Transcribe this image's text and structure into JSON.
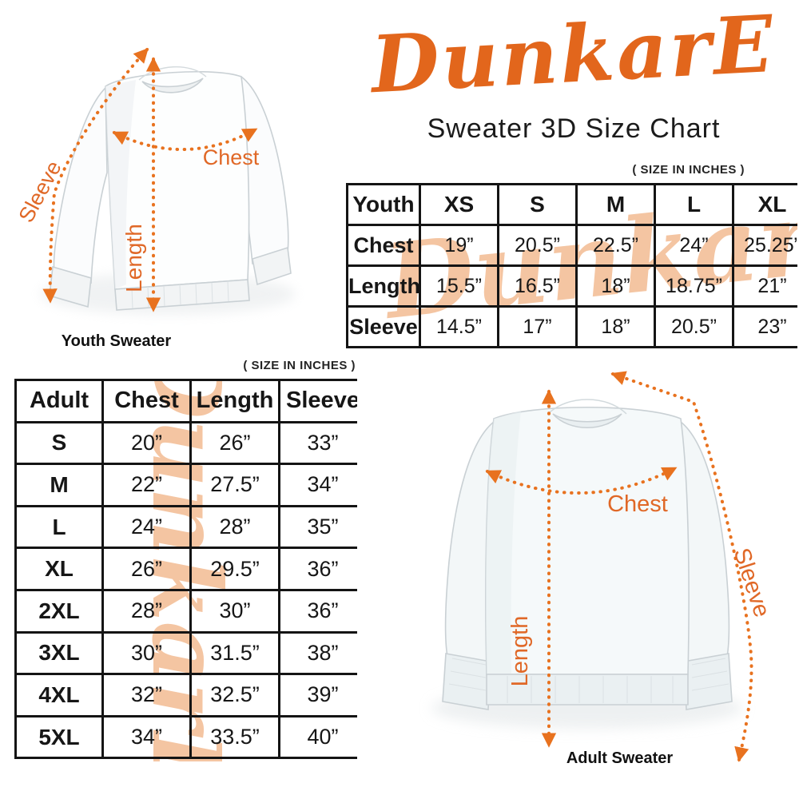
{
  "brand": {
    "logo_text": "DunkarE",
    "subtitle": "Sweater 3D Size Chart"
  },
  "size_note": "( SIZE IN INCHES )",
  "colors": {
    "brand_orange": "#e2661c",
    "arrow_orange": "#e8721f",
    "watermark_peach": "#f4c5a2",
    "table_border_black": "#141414"
  },
  "youth_diagram": {
    "caption": "Youth Sweater",
    "labels": {
      "chest": "Chest",
      "length": "Length",
      "sleeve": "Sleeve"
    }
  },
  "adult_diagram": {
    "caption": "Adult Sweater",
    "labels": {
      "chest": "Chest",
      "length": "Length",
      "sleeve": "Sleeve"
    }
  },
  "youth_table": {
    "header": [
      "Youth",
      "XS",
      "S",
      "M",
      "L",
      "XL"
    ],
    "rows": [
      {
        "label": "Chest",
        "values": [
          "19”",
          "20.5”",
          "22.5”",
          "24”",
          "25.25”"
        ]
      },
      {
        "label": "Length",
        "values": [
          "15.5”",
          "16.5”",
          "18”",
          "18.75”",
          "21”"
        ]
      },
      {
        "label": "Sleeve",
        "values": [
          "14.5”",
          "17”",
          "18”",
          "20.5”",
          "23”"
        ]
      }
    ]
  },
  "adult_table": {
    "header": [
      "Adult",
      "Chest",
      "Length",
      "Sleeve"
    ],
    "rows": [
      {
        "label": "S",
        "values": [
          "20”",
          "26”",
          "33”"
        ]
      },
      {
        "label": "M",
        "values": [
          "22”",
          "27.5”",
          "34”"
        ]
      },
      {
        "label": "L",
        "values": [
          "24”",
          "28”",
          "35”"
        ]
      },
      {
        "label": "XL",
        "values": [
          "26”",
          "29.5”",
          "36”"
        ]
      },
      {
        "label": "2XL",
        "values": [
          "28”",
          "30”",
          "36”"
        ]
      },
      {
        "label": "3XL",
        "values": [
          "30”",
          "31.5”",
          "38”"
        ]
      },
      {
        "label": "4XL",
        "values": [
          "32”",
          "32.5”",
          "39”"
        ]
      },
      {
        "label": "5XL",
        "values": [
          "34”",
          "33.5”",
          "40”"
        ]
      }
    ]
  }
}
